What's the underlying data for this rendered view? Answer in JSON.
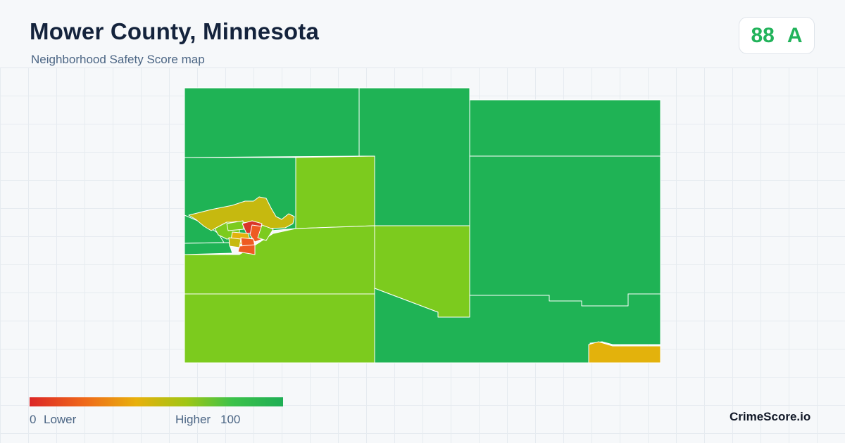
{
  "header": {
    "title": "Mower County, Minnesota",
    "subtitle": "Neighborhood Safety Score map"
  },
  "score": {
    "value": "88",
    "grade": "A",
    "color": "#22b35b"
  },
  "legend": {
    "min_value": "0",
    "min_label": "Lower",
    "max_label": "Higher",
    "max_value": "100",
    "colors": [
      "#dc2626",
      "#ef6a1a",
      "#e8b00c",
      "#9fc615",
      "#3cc24a",
      "#1fae55"
    ]
  },
  "map": {
    "color_scale": {
      "high": "#1fb355",
      "upper_mid": "#7ccb1e",
      "mid": "#c6b90f",
      "mid_warm": "#e3b20c",
      "low": "#ee5a22",
      "lowest": "#d9352a"
    }
  },
  "brand": {
    "name": "CrimeScore.io"
  }
}
